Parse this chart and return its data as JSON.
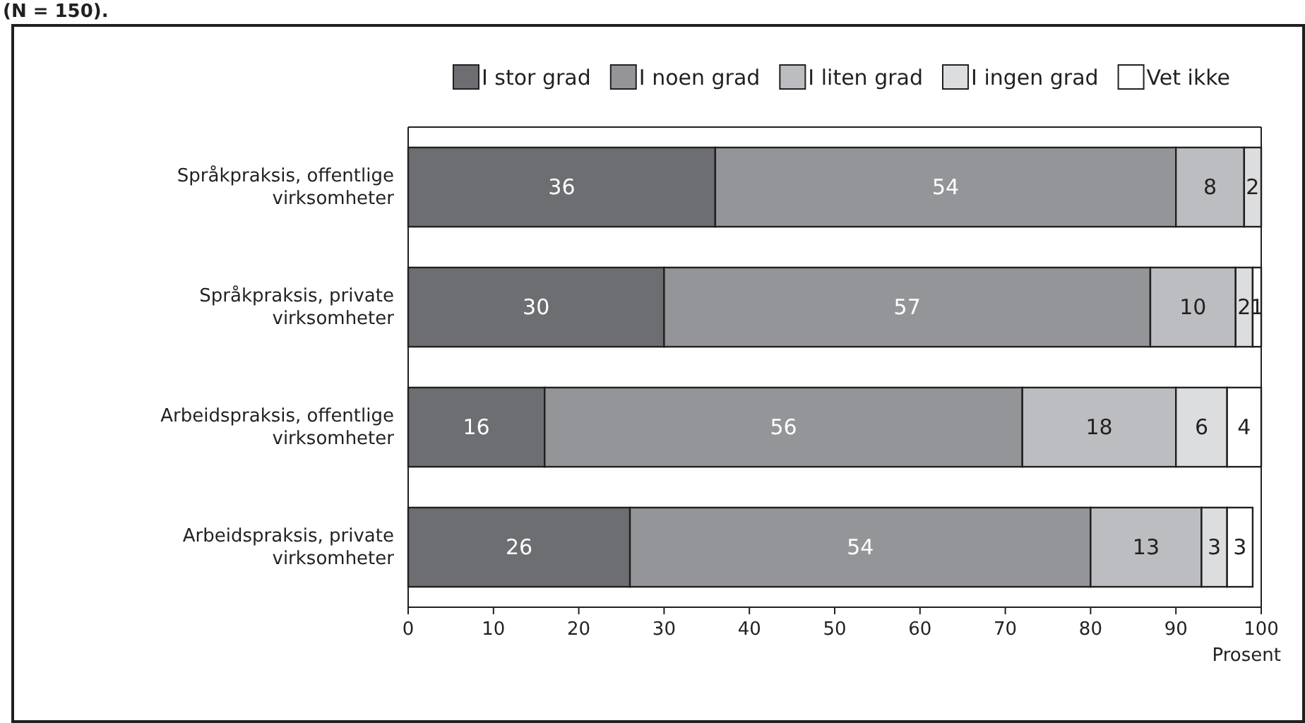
{
  "chart_data": {
    "type": "bar",
    "orientation": "horizontal",
    "stacked": true,
    "data_labels": true,
    "legend": "top",
    "xlabel": "Prosent",
    "annotations": [
      "(N = 150)."
    ],
    "categories": [
      "Språkpraksis, offentlige virksomheter",
      "Språkpraksis, private virksomheter",
      "Arbeidspraksis, offentlige virksomheter",
      "Arbeidspraksis, private virksomheter"
    ],
    "series": [
      {
        "name": "I stor grad",
        "color": "#6d6e72",
        "values": [
          36,
          30,
          16,
          26
        ]
      },
      {
        "name": "I noen grad",
        "color": "#939598",
        "values": [
          54,
          57,
          56,
          54
        ]
      },
      {
        "name": "I liten grad",
        "color": "#bcbdc0",
        "values": [
          8,
          10,
          18,
          13
        ]
      },
      {
        "name": "I ingen grad",
        "color": "#dcddde",
        "values": [
          2,
          2,
          6,
          3
        ]
      },
      {
        "name": "Vet ikke",
        "color": "#ffffff",
        "values": [
          null,
          1,
          4,
          3
        ]
      }
    ],
    "xlim": [
      0,
      100
    ],
    "xticks": [
      0,
      10,
      20,
      30,
      40,
      50,
      60,
      70,
      80,
      90,
      100
    ]
  }
}
